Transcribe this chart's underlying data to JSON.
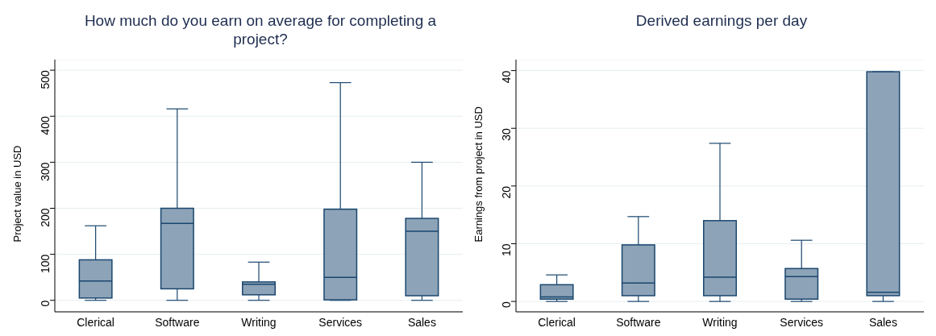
{
  "chart_data": [
    {
      "type": "box",
      "title": "How much do you earn on average for completing a project?",
      "ylabel": "Project value in USD",
      "categories": [
        "Clerical",
        "Software",
        "Writing",
        "Services",
        "Sales"
      ],
      "color": "#8da3b7",
      "boxes": [
        {
          "low": 0,
          "q1": 5,
          "median": 42,
          "q3": 88,
          "high": 162
        },
        {
          "low": 0,
          "q1": 25,
          "median": 167,
          "q3": 200,
          "high": 416
        },
        {
          "low": 0,
          "q1": 12,
          "median": 35,
          "q3": 40,
          "high": 83
        },
        {
          "low": 0,
          "q1": 1,
          "median": 50,
          "q3": 198,
          "high": 473
        },
        {
          "low": 0,
          "q1": 10,
          "median": 150,
          "q3": 178,
          "high": 300
        }
      ],
      "ylim": [
        -25,
        523
      ],
      "yticks": [
        0,
        100,
        200,
        300,
        400,
        500
      ],
      "grid": "y"
    },
    {
      "type": "box",
      "title": "Derived earnings per day",
      "ylabel": "Earnings from project in USD",
      "categories": [
        "Clerical",
        "Software",
        "Writing",
        "Services",
        "Sales"
      ],
      "color": "#8da3b7",
      "boxes": [
        {
          "low": 0,
          "q1": 0.4,
          "median": 0.8,
          "q3": 2.9,
          "high": 4.6
        },
        {
          "low": 0,
          "q1": 1,
          "median": 3.2,
          "q3": 9.8,
          "high": 14.7
        },
        {
          "low": 0,
          "q1": 1,
          "median": 4.2,
          "q3": 14,
          "high": 27.4
        },
        {
          "low": 0,
          "q1": 0.4,
          "median": 4.3,
          "q3": 5.7,
          "high": 10.6
        },
        {
          "low": 0,
          "q1": 1,
          "median": 1.6,
          "q3": 39.8,
          "high": 39.8
        }
      ],
      "ylim": [
        -1.8,
        41.9
      ],
      "yticks": [
        0,
        10,
        20,
        30,
        40
      ],
      "grid": "y"
    }
  ]
}
